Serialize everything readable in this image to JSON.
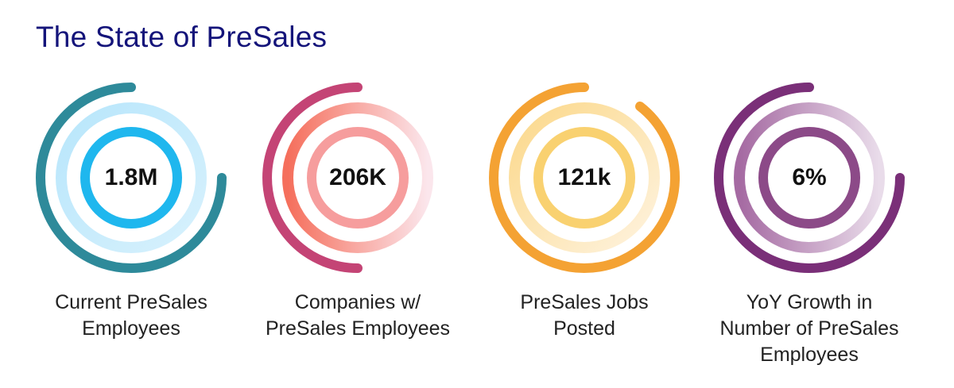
{
  "header": {
    "title": "The State of PreSales"
  },
  "stats": [
    {
      "value": "1.8M",
      "label_lines": [
        "Current PreSales",
        "Employees"
      ],
      "outer_color": "#2e8a9a",
      "grad_start": "#b8e6fb",
      "grad_end": "#d7f1fd",
      "inner_color": "#1fb7ee"
    },
    {
      "value": "206K",
      "label_lines": [
        "Companies w/",
        "PreSales Employees"
      ],
      "outer_color": "#c44475",
      "grad_start": "#f56f5c",
      "grad_end": "#fbe6ec",
      "inner_color": "#f58c8c"
    },
    {
      "value": "121k",
      "label_lines": [
        "PreSales Jobs",
        "Posted"
      ],
      "outer_color": "#f4a233",
      "grad_start": "#fbd88a",
      "grad_end": "#fef3df",
      "inner_color": "#f8c64c"
    },
    {
      "value": "6%",
      "label_lines": [
        "YoY Growth in",
        "Number of PreSales",
        "Employees"
      ],
      "outer_color": "#7a2f78",
      "grad_start": "#a56aa2",
      "grad_end": "#e9dcea",
      "inner_color": "#8c4a88"
    }
  ]
}
